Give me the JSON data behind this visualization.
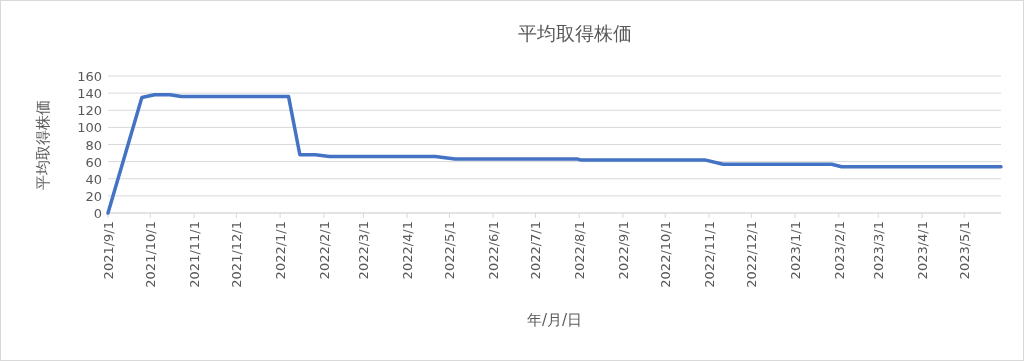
{
  "chart_data": {
    "type": "line",
    "title": "平均取得株価",
    "xlabel": "年/月/日",
    "ylabel": "平均取得株価",
    "series": [
      {
        "color": "#4472c4",
        "x": [
          "2021-09-01",
          "2021-09-25",
          "2021-10-04",
          "2021-10-15",
          "2021-10-23",
          "2022-01-07",
          "2022-01-15",
          "2022-01-26",
          "2022-02-05",
          "2022-04-21",
          "2022-05-05",
          "2022-07-31",
          "2022-08-02",
          "2022-10-29",
          "2022-11-11",
          "2023-01-27",
          "2023-02-03",
          "2023-05-27"
        ],
        "values": [
          0,
          135,
          138,
          138,
          136,
          136,
          68,
          68,
          66,
          66,
          63,
          63,
          62,
          62,
          57,
          57,
          54,
          54
        ]
      }
    ],
    "xlim": [
      "2021-09-01",
      "2023-05-27"
    ],
    "xticks": [
      {
        "value": "2021-09-01",
        "label": "2021/9/1"
      },
      {
        "value": "2021-10-01",
        "label": "2021/10/1"
      },
      {
        "value": "2021-11-01",
        "label": "2021/11/1"
      },
      {
        "value": "2021-12-01",
        "label": "2021/12/1"
      },
      {
        "value": "2022-01-01",
        "label": "2022/1/1"
      },
      {
        "value": "2022-02-01",
        "label": "2022/2/1"
      },
      {
        "value": "2022-03-01",
        "label": "2022/3/1"
      },
      {
        "value": "2022-04-01",
        "label": "2022/4/1"
      },
      {
        "value": "2022-05-01",
        "label": "2022/5/1"
      },
      {
        "value": "2022-06-01",
        "label": "2022/6/1"
      },
      {
        "value": "2022-07-01",
        "label": "2022/7/1"
      },
      {
        "value": "2022-08-01",
        "label": "2022/8/1"
      },
      {
        "value": "2022-09-01",
        "label": "2022/9/1"
      },
      {
        "value": "2022-10-01",
        "label": "2022/10/1"
      },
      {
        "value": "2022-11-01",
        "label": "2022/11/1"
      },
      {
        "value": "2022-12-01",
        "label": "2022/12/1"
      },
      {
        "value": "2023-01-01",
        "label": "2023/1/1"
      },
      {
        "value": "2023-02-01",
        "label": "2023/2/1"
      },
      {
        "value": "2023-03-01",
        "label": "2023/3/1"
      },
      {
        "value": "2023-04-01",
        "label": "2023/4/1"
      },
      {
        "value": "2023-05-01",
        "label": "2023/5/1"
      }
    ],
    "ylim": [
      0,
      160
    ],
    "yticks": [
      0,
      20,
      40,
      60,
      80,
      100,
      120,
      140,
      160
    ],
    "grid": "y",
    "marker": "none",
    "line_style": "solid"
  }
}
